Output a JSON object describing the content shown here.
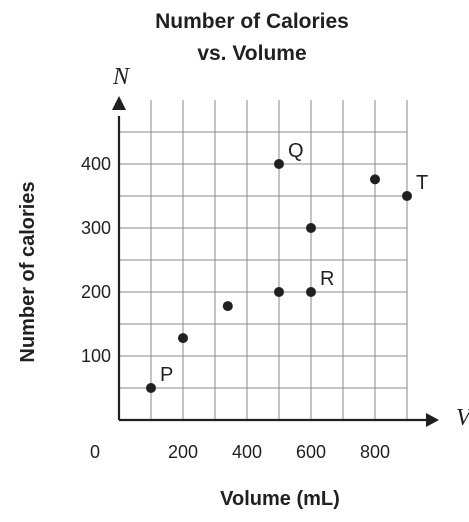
{
  "chart_data": {
    "type": "scatter",
    "title_lines": [
      "Number of Calories",
      "vs. Volume"
    ],
    "xlabel": "Volume (mL)",
    "ylabel": "Number of calories",
    "x_axis_var": "V",
    "y_axis_var": "N",
    "origin_label": "0",
    "xlim": [
      0,
      1000
    ],
    "ylim": [
      0,
      500
    ],
    "x_grid_step": 100,
    "y_grid_step": 50,
    "grid": true,
    "x_ticks": [
      200,
      400,
      600,
      800
    ],
    "y_ticks": [
      100,
      200,
      300,
      400
    ],
    "points": [
      {
        "x": 100,
        "y": 50,
        "label": "P"
      },
      {
        "x": 200,
        "y": 128,
        "label": ""
      },
      {
        "x": 340,
        "y": 178,
        "label": ""
      },
      {
        "x": 500,
        "y": 200,
        "label": ""
      },
      {
        "x": 500,
        "y": 400,
        "label": "Q"
      },
      {
        "x": 600,
        "y": 200,
        "label": "R"
      },
      {
        "x": 600,
        "y": 300,
        "label": ""
      },
      {
        "x": 800,
        "y": 376,
        "label": ""
      },
      {
        "x": 900,
        "y": 350,
        "label": "T"
      }
    ],
    "colors": {
      "ink": "#231f20",
      "grid": "#8a8a8a"
    }
  }
}
